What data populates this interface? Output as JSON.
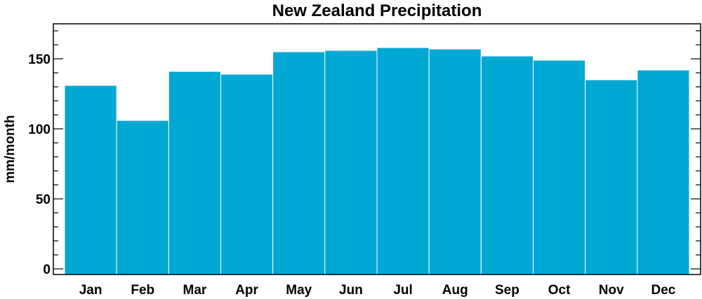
{
  "chart_data": {
    "type": "bar",
    "title": "New Zealand Precipitation",
    "xlabel": "",
    "ylabel": "mm/month",
    "categories": [
      "Jan",
      "Feb",
      "Mar",
      "Apr",
      "May",
      "Jun",
      "Jul",
      "Aug",
      "Sep",
      "Oct",
      "Nov",
      "Dec"
    ],
    "values": [
      131,
      106,
      141,
      139,
      155,
      156,
      158,
      157,
      152,
      149,
      135,
      142
    ],
    "ylim": [
      -4,
      175
    ],
    "yticks": [
      0,
      50,
      100,
      150
    ],
    "ytick_labels": [
      "0",
      "50",
      "100",
      "150"
    ],
    "bar_color": "#00a8d4",
    "bar_edge_color": "#ffffff",
    "grid": false,
    "legend": "none"
  }
}
